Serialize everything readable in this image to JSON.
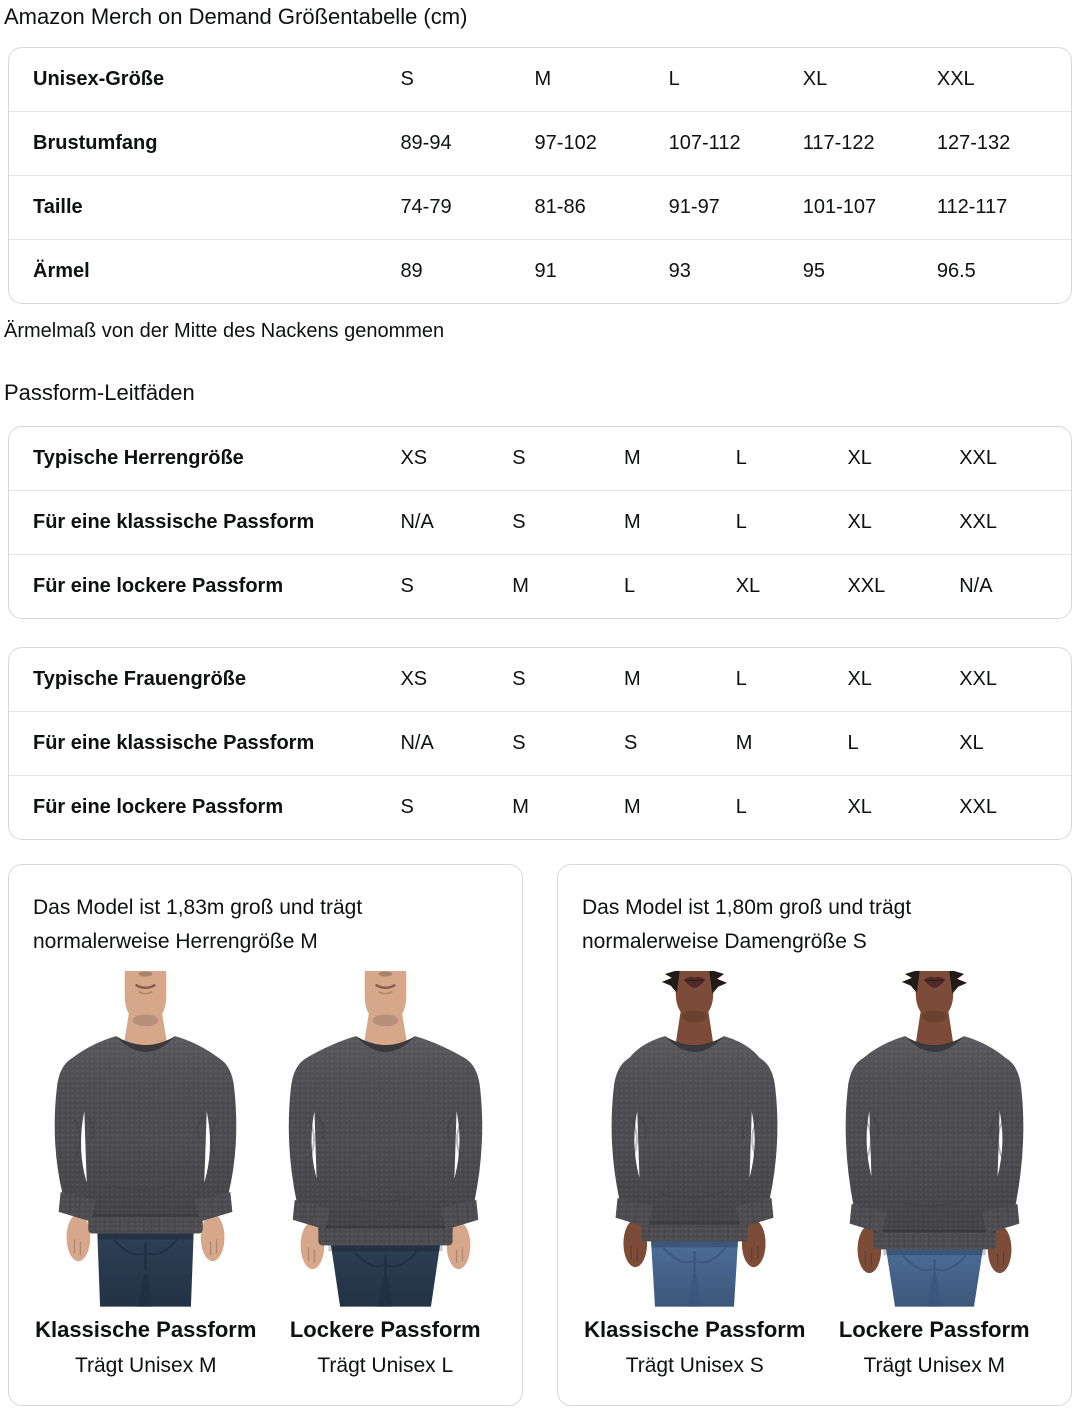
{
  "page_title": "Amazon Merch on Demand Größentabelle (cm)",
  "size_table": {
    "rows": [
      {
        "label": "Unisex-Größe",
        "values": [
          "S",
          "M",
          "L",
          "XL",
          "XXL"
        ]
      },
      {
        "label": "Brustumfang",
        "values": [
          "89-94",
          "97-102",
          "107-112",
          "117-122",
          "127-132"
        ]
      },
      {
        "label": "Taille",
        "values": [
          "74-79",
          "81-86",
          "91-97",
          "101-107",
          "112-117"
        ]
      },
      {
        "label": "Ärmel",
        "values": [
          "89",
          "91",
          "93",
          "95",
          "96.5"
        ]
      }
    ],
    "footnote": "Ärmelmaß von der Mitte des Nackens genommen"
  },
  "fit_guides": {
    "heading": "Passform-Leitfäden",
    "tables": [
      {
        "rows": [
          {
            "label": "Typische Herrengröße",
            "values": [
              "XS",
              "S",
              "M",
              "L",
              "XL",
              "XXL"
            ]
          },
          {
            "label": "Für eine klassische Passform",
            "values": [
              "N/A",
              "S",
              "M",
              "L",
              "XL",
              "XXL"
            ]
          },
          {
            "label": "Für eine lockere Passform",
            "values": [
              "S",
              "M",
              "L",
              "XL",
              "XXL",
              "N/A"
            ]
          }
        ]
      },
      {
        "rows": [
          {
            "label": "Typische Frauengröße",
            "values": [
              "XS",
              "S",
              "M",
              "L",
              "XL",
              "XXL"
            ]
          },
          {
            "label": "Für eine klassische Passform",
            "values": [
              "N/A",
              "S",
              "S",
              "M",
              "L",
              "XL"
            ]
          },
          {
            "label": "Für eine lockere Passform",
            "values": [
              "S",
              "M",
              "M",
              "L",
              "XL",
              "XXL"
            ]
          }
        ]
      }
    ]
  },
  "model_cards": [
    {
      "description": "Das Model ist 1,83m groß und trägt normalerweise Herrengröße M",
      "model": "male",
      "figures": [
        {
          "fit_label": "Klassische Passform",
          "size_label": "Trägt Unisex M",
          "fit": "classic"
        },
        {
          "fit_label": "Lockere Passform",
          "size_label": "Trägt Unisex L",
          "fit": "loose"
        }
      ]
    },
    {
      "description": "Das Model ist 1,80m groß und trägt normalerweise Damengröße S",
      "model": "female",
      "figures": [
        {
          "fit_label": "Klassische Passform",
          "size_label": "Trägt Unisex S",
          "fit": "classic"
        },
        {
          "fit_label": "Lockere Passform",
          "size_label": "Trägt Unisex M",
          "fit": "loose"
        }
      ]
    }
  ],
  "colors": {
    "text": "#0f1111",
    "card_border": "#d5d9d9",
    "row_divider": "#e7e7e7",
    "sweatshirt": "#4d4d51",
    "sweatshirt_dark": "#39393e",
    "skin_male": "#d7a78c",
    "skin_female": "#7d4c38",
    "lips_female": "#4e2a28",
    "hair_female": "#221a16",
    "jeans_male": "#2d4057",
    "jeans_male_dark": "#1f2f44",
    "jeans_female": "#4d6f9b",
    "jeans_female_dark": "#3a567d"
  }
}
